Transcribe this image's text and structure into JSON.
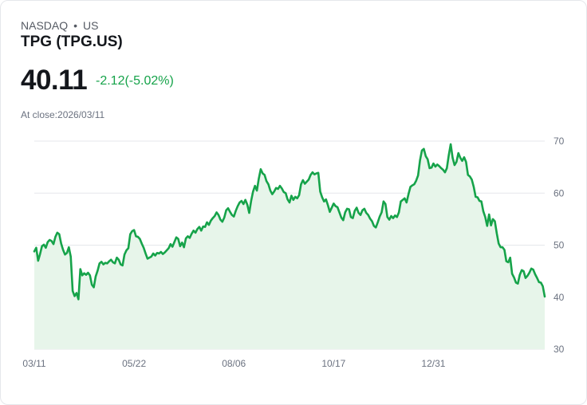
{
  "header": {
    "exchange": "NASDAQ",
    "separator": "•",
    "region": "US",
    "title": "TPG (TPG.US)",
    "price": "40.11",
    "change_text": "-2.12(-5.02%)",
    "close_label": "At close:2026/03/11"
  },
  "colors": {
    "line": "#16a34a",
    "fill": "#e7f5ea",
    "grid": "#e5e7eb",
    "change": "#16a34a"
  },
  "chart_data": {
    "type": "area",
    "title": "TPG (TPG.US)",
    "xlabel": "",
    "ylabel": "",
    "ylim": [
      30,
      70
    ],
    "yticks": [
      70,
      60,
      50,
      40,
      30
    ],
    "grid": true,
    "x_tick_labels": [
      "03/11",
      "05/22",
      "08/06",
      "10/17",
      "12/31"
    ],
    "x_tick_indices": [
      0,
      52,
      104,
      156,
      208
    ],
    "series": [
      {
        "name": "TPG",
        "values": [
          48.8,
          49.5,
          47.0,
          48.3,
          49.8,
          50.1,
          49.5,
          50.6,
          51.0,
          50.8,
          50.2,
          51.6,
          52.4,
          52.1,
          50.3,
          49.1,
          48.2,
          48.5,
          49.6,
          47.8,
          41.2,
          40.2,
          40.8,
          39.6,
          45.4,
          44.2,
          44.6,
          44.3,
          44.7,
          44.2,
          42.4,
          41.9,
          44.0,
          45.1,
          46.5,
          46.8,
          46.3,
          46.6,
          46.5,
          46.9,
          47.2,
          46.7,
          46.5,
          47.6,
          47.2,
          46.3,
          46.1,
          48.2,
          49.0,
          49.4,
          52.1,
          52.7,
          52.9,
          51.7,
          51.6,
          51.2,
          50.3,
          49.5,
          48.4,
          47.4,
          47.6,
          47.8,
          48.4,
          48.0,
          48.5,
          48.4,
          48.7,
          48.3,
          48.6,
          49.0,
          49.4,
          50.2,
          49.7,
          50.6,
          51.5,
          51.2,
          49.8,
          50.5,
          49.6,
          51.3,
          51.7,
          51.4,
          52.2,
          52.8,
          52.4,
          53.1,
          53.5,
          52.8,
          53.6,
          53.5,
          54.4,
          53.9,
          54.7,
          55.2,
          55.6,
          56.3,
          55.8,
          54.9,
          54.5,
          55.3,
          56.7,
          57.1,
          56.4,
          55.8,
          55.5,
          56.6,
          57.5,
          58.2,
          58.5,
          57.9,
          58.7,
          57.8,
          56.2,
          58.5,
          60.3,
          61.4,
          60.5,
          62.8,
          64.6,
          63.8,
          63.5,
          62.3,
          61.7,
          60.5,
          59.8,
          60.3,
          61.0,
          60.8,
          61.4,
          60.9,
          60.2,
          60.0,
          58.8,
          58.2,
          59.5,
          58.7,
          59.3,
          59.0,
          59.6,
          61.7,
          62.5,
          61.8,
          62.2,
          62.6,
          63.5,
          64.0,
          63.6,
          63.8,
          63.9,
          60.3,
          59.2,
          58.4,
          58.8,
          57.7,
          56.4,
          57.2,
          58.0,
          57.5,
          57.3,
          56.3,
          55.3,
          54.8,
          56.3,
          57.0,
          56.9,
          55.4,
          55.2,
          56.6,
          57.2,
          56.2,
          55.8,
          56.7,
          57.0,
          56.2,
          55.8,
          55.1,
          54.6,
          53.7,
          53.4,
          54.4,
          55.5,
          56.3,
          58.4,
          57.9,
          55.4,
          54.9,
          55.6,
          55.2,
          55.7,
          55.4,
          56.3,
          58.4,
          58.7,
          59.0,
          58.2,
          59.8,
          61.2,
          61.5,
          61.7,
          62.4,
          63.4,
          66.3,
          68.2,
          68.5,
          67.1,
          66.5,
          64.8,
          64.9,
          65.7,
          65.1,
          65.5,
          65.2,
          64.8,
          64.5,
          64.0,
          64.8,
          67.3,
          69.4,
          66.8,
          65.4,
          66.0,
          67.7,
          66.8,
          66.2,
          66.9,
          66.0,
          63.5,
          63.2,
          62.6,
          61.2,
          59.3,
          59.2,
          58.5,
          58.4,
          56.5,
          55.4,
          53.7,
          55.9,
          53.8,
          55.0,
          54.6,
          52.3,
          50.3,
          49.6,
          49.6,
          49.1,
          46.9,
          46.7,
          47.6,
          44.5,
          43.8,
          42.8,
          42.6,
          44.3,
          45.2,
          45.0,
          43.7,
          44.1,
          44.7,
          45.5,
          45.3,
          44.4,
          43.7,
          42.9,
          42.8,
          42.1,
          40.11
        ]
      }
    ]
  }
}
